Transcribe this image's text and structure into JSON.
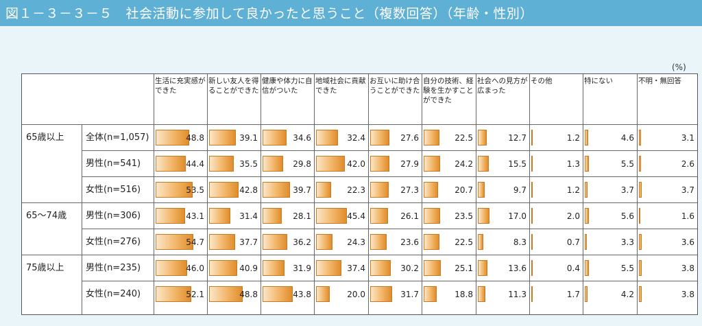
{
  "title": "図１－３－３－５　社会活動に参加して良かったと思うこと（複数回答）（年齢・性別）",
  "unit": "(%)",
  "chart_data": {
    "type": "bar",
    "categories": [
      "生活に充実感ができた",
      "新しい友人を得ることができた",
      "健康や体力に自信がついた",
      "地域社会に貢献できた",
      "お互いに助け合うことができた",
      "自分の技術、経験を生かすことができた",
      "社会への見方が広まった",
      "その他",
      "特にない",
      "不明・無回答"
    ],
    "groups": [
      "65歳以上",
      "65～74歳",
      "75歳以上"
    ],
    "series": [
      {
        "name": "全体(n=1,057)",
        "group": "65歳以上",
        "values": [
          48.8,
          39.1,
          34.6,
          32.4,
          27.6,
          22.5,
          12.7,
          1.2,
          4.6,
          3.1
        ]
      },
      {
        "name": "男性(n=541)",
        "group": "",
        "values": [
          44.4,
          35.5,
          29.8,
          42.0,
          27.9,
          24.2,
          15.5,
          1.3,
          5.5,
          2.6
        ]
      },
      {
        "name": "女性(n=516)",
        "group": "",
        "values": [
          53.5,
          42.8,
          39.7,
          22.3,
          27.3,
          20.7,
          9.7,
          1.2,
          3.7,
          3.7
        ]
      },
      {
        "name": "男性(n=306)",
        "group": "65～74歳",
        "values": [
          43.1,
          31.4,
          28.1,
          45.4,
          26.1,
          23.5,
          17.0,
          2.0,
          5.6,
          1.6
        ]
      },
      {
        "name": "女性(n=276)",
        "group": "",
        "values": [
          54.7,
          37.7,
          36.2,
          24.3,
          23.6,
          22.5,
          8.3,
          0.7,
          3.3,
          3.6
        ]
      },
      {
        "name": "男性(n=235)",
        "group": "75歳以上",
        "values": [
          46.0,
          40.9,
          31.9,
          37.4,
          30.2,
          25.1,
          13.6,
          0.4,
          5.5,
          3.8
        ]
      },
      {
        "name": "女性(n=240)",
        "group": "",
        "values": [
          52.1,
          48.8,
          43.8,
          20.0,
          31.7,
          18.8,
          11.3,
          1.7,
          4.2,
          3.8
        ]
      }
    ],
    "value_labels": [
      [
        "48.8",
        "39.1",
        "34.6",
        "32.4",
        "27.6",
        "22.5",
        "12.7",
        "1.2",
        "4.6",
        "3.1"
      ],
      [
        "44.4",
        "35.5",
        "29.8",
        "42.0",
        "27.9",
        "24.2",
        "15.5",
        "1.3",
        "5.5",
        "2.6"
      ],
      [
        "53.5",
        "42.8",
        "39.7",
        "22.3",
        "27.3",
        "20.7",
        "9.7",
        "1.2",
        "3.7",
        "3.7"
      ],
      [
        "43.1",
        "31.4",
        "28.1",
        "45.4",
        "26.1",
        "23.5",
        "17.0",
        "2.0",
        "5.6",
        "1.6"
      ],
      [
        "54.7",
        "37.7",
        "36.2",
        "24.3",
        "23.6",
        "22.5",
        "8.3",
        "0.7",
        "3.3",
        "3.6"
      ],
      [
        "46.0",
        "40.9",
        "31.9",
        "37.4",
        "30.2",
        "25.1",
        "13.6",
        "0.4",
        "5.5",
        "3.8"
      ],
      [
        "52.1",
        "48.8",
        "43.8",
        "20.0",
        "31.7",
        "18.8",
        "11.3",
        "1.7",
        "4.2",
        "3.8"
      ]
    ],
    "ylim": [
      0,
      100
    ],
    "bar_color": "#f2b567",
    "bar_border_color": "#c77a22"
  }
}
